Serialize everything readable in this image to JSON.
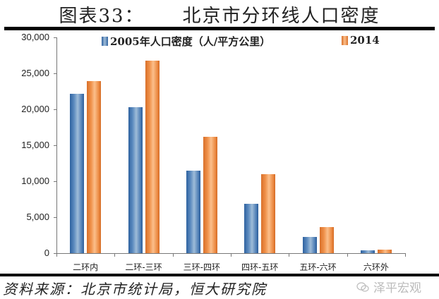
{
  "title": {
    "prefix": "图表33：",
    "text": "北京市分环线人口密度"
  },
  "legend": [
    {
      "label": "2005年人口密度（人/平方公里）",
      "color": "#4f7fb6"
    },
    {
      "label": "2014",
      "color": "#ec8a42"
    }
  ],
  "y_ticks": [
    "30,000",
    "25,000",
    "20,000",
    "15,000",
    "10,000",
    "5,000",
    "0"
  ],
  "x_labels": [
    "二环内",
    "二环-三环",
    "三环-四环",
    "四环-五环",
    "五环-六环",
    "六环外"
  ],
  "source": "资料来源：北京市统计局，恒大研究院",
  "watermark": {
    "icon": "wechat-icon",
    "text": "泽平宏观"
  },
  "chart_data": {
    "type": "bar",
    "title": "图表33：北京市分环线人口密度",
    "categories": [
      "二环内",
      "二环-三环",
      "三环-四环",
      "四环-五环",
      "五环-六环",
      "六环外"
    ],
    "series": [
      {
        "name": "2005年人口密度（人/平方公里）",
        "values": [
          22200,
          20300,
          11500,
          6900,
          2300,
          400
        ]
      },
      {
        "name": "2014",
        "values": [
          23900,
          26800,
          16200,
          11000,
          3600,
          500
        ]
      }
    ],
    "xlabel": "",
    "ylabel": "",
    "ylim": [
      0,
      30000
    ],
    "yticks": [
      0,
      5000,
      10000,
      15000,
      20000,
      25000,
      30000
    ],
    "grid": false,
    "legend_position": "top"
  }
}
